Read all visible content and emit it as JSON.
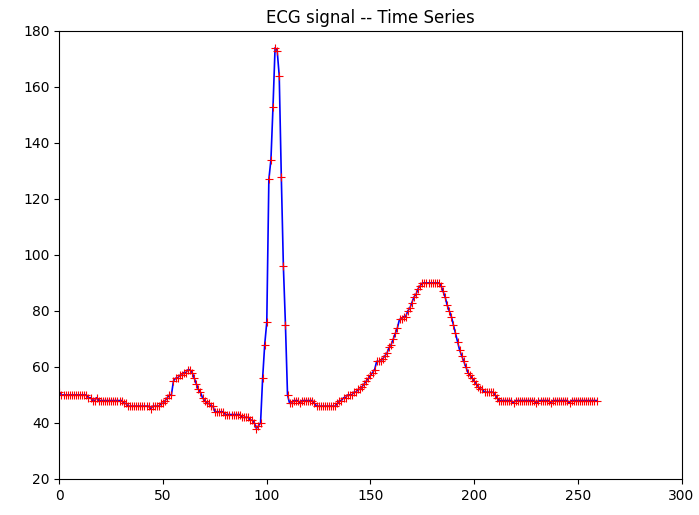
{
  "chart_data": {
    "type": "line",
    "title": "ECG signal -- Time Series",
    "x": [
      0,
      1,
      2,
      3,
      4,
      5,
      6,
      7,
      8,
      9,
      10,
      11,
      12,
      13,
      14,
      15,
      16,
      17,
      18,
      19,
      20,
      21,
      22,
      23,
      24,
      25,
      26,
      27,
      28,
      29,
      30,
      31,
      32,
      33,
      34,
      35,
      36,
      37,
      38,
      39,
      40,
      41,
      42,
      43,
      44,
      45,
      46,
      47,
      48,
      49,
      50,
      51,
      52,
      53,
      54,
      55,
      56,
      57,
      58,
      59,
      60,
      61,
      62,
      63,
      64,
      65,
      66,
      67,
      68,
      69,
      70,
      71,
      72,
      73,
      74,
      75,
      76,
      77,
      78,
      79,
      80,
      81,
      82,
      83,
      84,
      85,
      86,
      87,
      88,
      89,
      90,
      91,
      92,
      93,
      94,
      95,
      96,
      97,
      98,
      99,
      100,
      101,
      102,
      103,
      104,
      105,
      106,
      107,
      108,
      109,
      110,
      111,
      112,
      113,
      114,
      115,
      116,
      117,
      118,
      119,
      120,
      121,
      122,
      123,
      124,
      125,
      126,
      127,
      128,
      129,
      130,
      131,
      132,
      133,
      134,
      135,
      136,
      137,
      138,
      139,
      140,
      141,
      142,
      143,
      144,
      145,
      146,
      147,
      148,
      149,
      150,
      151,
      152,
      153,
      154,
      155,
      156,
      157,
      158,
      159,
      160,
      161,
      162,
      163,
      164,
      165,
      166,
      167,
      168,
      169,
      170,
      171,
      172,
      173,
      174,
      175,
      176,
      177,
      178,
      179,
      180,
      181,
      182,
      183,
      184,
      185,
      186,
      187,
      188,
      189,
      190,
      191,
      192,
      193,
      194,
      195,
      196,
      197,
      198,
      199,
      200,
      201,
      202,
      203,
      204,
      205,
      206,
      207,
      208,
      209,
      210,
      211,
      212,
      213,
      214,
      215,
      216,
      217,
      218,
      219,
      220,
      221,
      222,
      223,
      224,
      225,
      226,
      227,
      228,
      229,
      230,
      231,
      232,
      233,
      234,
      235,
      236,
      237,
      238,
      239,
      240,
      241,
      242,
      243,
      244,
      245,
      246,
      247,
      248,
      249,
      250,
      251,
      252,
      253,
      254,
      255,
      256,
      257,
      258,
      259
    ],
    "series": [
      {
        "color": "blue",
        "marker": "+",
        "line_style": "solid",
        "values": [
          51,
          50,
          50,
          50,
          50,
          50,
          50,
          50,
          50,
          50,
          50,
          50,
          50,
          50,
          49,
          49,
          48,
          48,
          49,
          48,
          48,
          48,
          48,
          48,
          48,
          48,
          48,
          48,
          48,
          48,
          48,
          47,
          47,
          46,
          46,
          46,
          46,
          46,
          46,
          46,
          46,
          46,
          46,
          46,
          45,
          46,
          46,
          46,
          46,
          47,
          47,
          48,
          49,
          50,
          50,
          55,
          56,
          56,
          57,
          57,
          58,
          58,
          59,
          59,
          58,
          56,
          54,
          52,
          51,
          49,
          48,
          47,
          47,
          46,
          46,
          44,
          44,
          44,
          44,
          44,
          43,
          43,
          43,
          43,
          43,
          43,
          43,
          43,
          42,
          42,
          42,
          42,
          41,
          41,
          40,
          38,
          39,
          40,
          56,
          68,
          76,
          127,
          134,
          153,
          174,
          173,
          164,
          128,
          96,
          75,
          50,
          47,
          47,
          48,
          48,
          48,
          47,
          48,
          48,
          48,
          48,
          48,
          48,
          47,
          46,
          46,
          46,
          46,
          46,
          46,
          46,
          46,
          46,
          46,
          47,
          48,
          48,
          49,
          49,
          50,
          50,
          50,
          51,
          51,
          52,
          52,
          53,
          54,
          55,
          56,
          57,
          58,
          59,
          62,
          62,
          62,
          63,
          64,
          65,
          67,
          68,
          70,
          72,
          74,
          77,
          77,
          78,
          78,
          80,
          81,
          83,
          85,
          86,
          88,
          89,
          90,
          90,
          90,
          90,
          90,
          90,
          90,
          90,
          90,
          89,
          87,
          85,
          82,
          80,
          78,
          75,
          72,
          69,
          66,
          64,
          62,
          60,
          58,
          57,
          56,
          55,
          54,
          53,
          52,
          52,
          51,
          51,
          51,
          51,
          51,
          50,
          49,
          48,
          48,
          48,
          48,
          48,
          48,
          48,
          47,
          48,
          48,
          48,
          48,
          48,
          48,
          48,
          48,
          48,
          48,
          47,
          48,
          48,
          48,
          48,
          48,
          48,
          47,
          48,
          48,
          48,
          48,
          48,
          48,
          48,
          48,
          47,
          48,
          48,
          48,
          48,
          48,
          48,
          48,
          48,
          48,
          48,
          48,
          48,
          48
        ]
      }
    ],
    "xlim": [
      0,
      300
    ],
    "xticks": [
      0,
      50,
      100,
      150,
      200,
      250,
      300
    ],
    "ylim": [
      20,
      180
    ],
    "yticks": [
      20,
      40,
      60,
      80,
      100,
      120,
      140,
      160,
      180
    ],
    "grid": false
  }
}
